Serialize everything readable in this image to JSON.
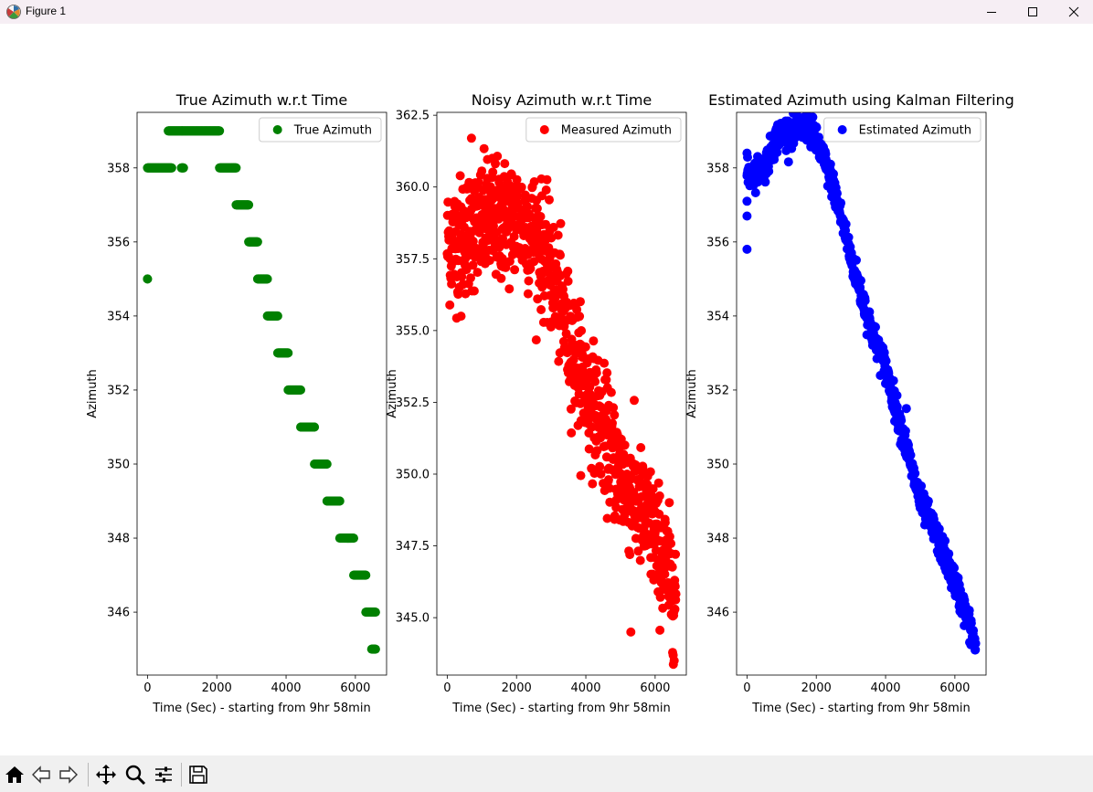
{
  "window": {
    "title": "Figure 1",
    "icon": "matplotlib-figure-icon",
    "controls": [
      "minimize-icon",
      "maximize-icon",
      "close-icon"
    ]
  },
  "toolbar": {
    "buttons": [
      "home-icon",
      "back-icon",
      "forward-icon",
      "pan-icon",
      "zoom-icon",
      "configure-subplots-icon",
      "save-icon"
    ]
  },
  "chart_data": [
    {
      "type": "scatter",
      "title": "True Azimuth w.r.t Time",
      "xlabel": "Time (Sec) - starting from 9hr 58min",
      "ylabel": "Azimuth",
      "xlim": [
        -300,
        6900
      ],
      "ylim": [
        344.3,
        359.5
      ],
      "xticks": [
        0,
        2000,
        4000,
        6000
      ],
      "yticks": [
        346,
        348,
        350,
        352,
        354,
        356,
        358
      ],
      "ytick_labels": [
        "346",
        "348",
        "350",
        "352",
        "354",
        "356",
        "358"
      ],
      "legend": "top-right",
      "grid": false,
      "series": [
        {
          "name": "True Azimuth",
          "color": "#008000",
          "segments": [
            {
              "x": [
                0,
                0
              ],
              "y": 355
            },
            {
              "x": [
                0,
                700
              ],
              "y": 358
            },
            {
              "x": [
                980,
                1040
              ],
              "y": 358
            },
            {
              "x": [
                600,
                1000
              ],
              "y": 359
            },
            {
              "x": [
                1000,
                2080
              ],
              "y": 359
            },
            {
              "x": [
                2080,
                2560
              ],
              "y": 358
            },
            {
              "x": [
                2560,
                2920
              ],
              "y": 357
            },
            {
              "x": [
                2920,
                3180
              ],
              "y": 356
            },
            {
              "x": [
                3180,
                3460
              ],
              "y": 355
            },
            {
              "x": [
                3460,
                3760
              ],
              "y": 354
            },
            {
              "x": [
                3760,
                4060
              ],
              "y": 353
            },
            {
              "x": [
                4060,
                4420
              ],
              "y": 352
            },
            {
              "x": [
                4420,
                4820
              ],
              "y": 351
            },
            {
              "x": [
                4820,
                5180
              ],
              "y": 350
            },
            {
              "x": [
                5180,
                5550
              ],
              "y": 349
            },
            {
              "x": [
                5550,
                5950
              ],
              "y": 348
            },
            {
              "x": [
                5950,
                6300
              ],
              "y": 347
            },
            {
              "x": [
                6300,
                6580
              ],
              "y": 346
            },
            {
              "x": [
                6470,
                6580
              ],
              "y": 345
            }
          ]
        }
      ]
    },
    {
      "type": "scatter",
      "title": "Noisy Azimuth w.r.t Time",
      "xlabel": "Time (Sec) - starting from 9hr 58min",
      "ylabel": "Azimuth",
      "xlim": [
        -300,
        6900
      ],
      "ylim": [
        343.0,
        362.6
      ],
      "xticks": [
        0,
        2000,
        4000,
        6000
      ],
      "yticks": [
        345.0,
        347.5,
        350.0,
        352.5,
        355.0,
        357.5,
        360.0,
        362.5
      ],
      "ytick_labels": [
        "345.0",
        "347.5",
        "350.0",
        "352.5",
        "355.0",
        "357.5",
        "360.0",
        "362.5"
      ],
      "legend": "top-right",
      "grid": false,
      "series": [
        {
          "name": "Measured Azimuth",
          "color": "#ff0000",
          "trend_points": [
            [
              0,
              358.0
            ],
            [
              1000,
              358.7
            ],
            [
              2000,
              358.9
            ],
            [
              2600,
              358.3
            ],
            [
              3000,
              357.0
            ],
            [
              3600,
              354.4
            ],
            [
              4000,
              353.0
            ],
            [
              5000,
              350.0
            ],
            [
              6000,
              347.8
            ],
            [
              6600,
              345.8
            ]
          ],
          "noise_sd": 1.05,
          "count": 900,
          "outliers": [
            [
              700,
              361.7
            ],
            [
              5300,
              344.5
            ],
            [
              1300,
              361.0
            ],
            [
              6550,
              343.5
            ],
            [
              400,
              355.5
            ]
          ]
        }
      ]
    },
    {
      "type": "scatter",
      "title": "Estimated Azimuth using Kalman Filtering",
      "xlabel": "Time (Sec) - starting from 9hr 58min",
      "ylabel": "Azimuth",
      "xlim": [
        -300,
        6900
      ],
      "ylim": [
        344.3,
        359.5
      ],
      "xticks": [
        0,
        2000,
        4000,
        6000
      ],
      "yticks": [
        346,
        348,
        350,
        352,
        354,
        356,
        358
      ],
      "ytick_labels": [
        "346",
        "348",
        "350",
        "352",
        "354",
        "356",
        "358"
      ],
      "legend": "top-right",
      "grid": false,
      "series": [
        {
          "name": "Estimated Azimuth",
          "color": "#0000ff",
          "trend_points": [
            [
              0,
              357.8
            ],
            [
              500,
              358.0
            ],
            [
              900,
              358.9
            ],
            [
              1800,
              359.1
            ],
            [
              2100,
              358.5
            ],
            [
              2500,
              357.5
            ],
            [
              3000,
              355.6
            ],
            [
              3600,
              353.6
            ],
            [
              4000,
              352.6
            ],
            [
              4500,
              350.8
            ],
            [
              5000,
              349.0
            ],
            [
              5500,
              348.0
            ],
            [
              6000,
              346.8
            ],
            [
              6300,
              346.0
            ],
            [
              6600,
              345.1
            ]
          ],
          "noise_sd": 0.2,
          "count": 800,
          "outliers": [
            [
              0,
              355.8
            ],
            [
              0,
              356.7
            ],
            [
              0,
              357.1
            ],
            [
              0,
              358.4
            ],
            [
              4600,
              351.5
            ]
          ]
        }
      ]
    }
  ]
}
